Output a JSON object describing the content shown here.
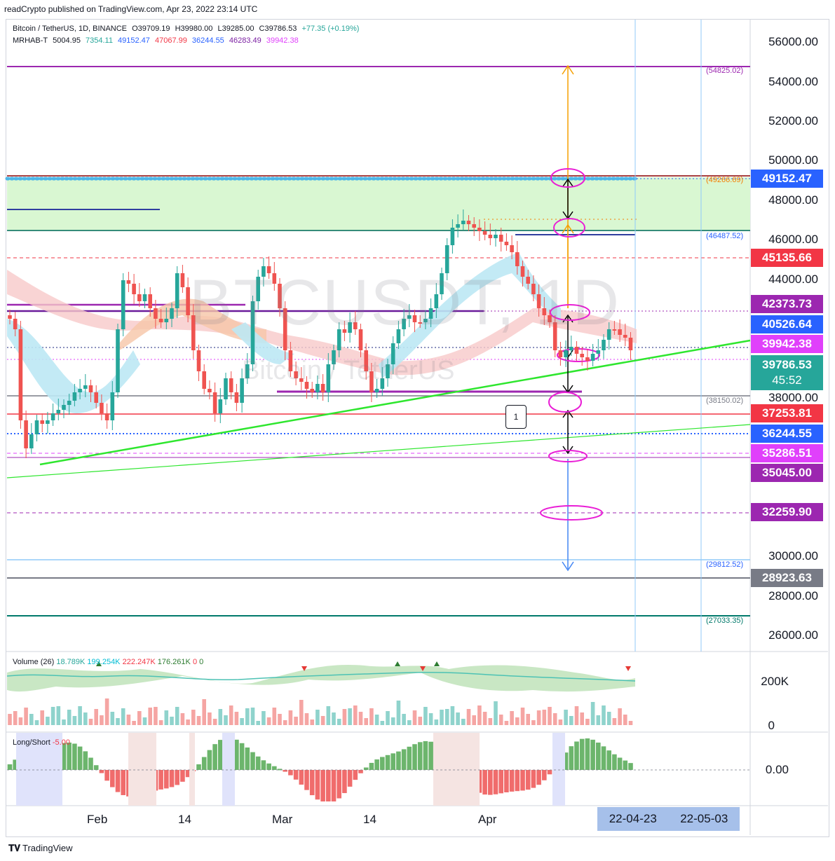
{
  "header": {
    "text": "readCrypto published on TradingView.com, Apr 23, 2022 23:14 UTC"
  },
  "legend": {
    "symbol": "Bitcoin / TetherUS, 1D, BINANCE",
    "open": "O39709.19",
    "high": "H39980.00",
    "low": "L39285.00",
    "close": "C39786.53",
    "change": "+77.35 (+0.19%)",
    "indicator_name": "MRHAB-T",
    "indicator_values": [
      "5004.95",
      "7354.11",
      "49152.47",
      "47067.99",
      "36244.55",
      "46283.49",
      "39942.38"
    ],
    "indicator_colors": [
      "#131722",
      "#26a69a",
      "#2962ff",
      "#f23645",
      "#2962ff",
      "#7b1fa2",
      "#e040fb"
    ]
  },
  "watermark": {
    "ticker": "BTCUSDT, 1D",
    "name": "Bitcoin / TetherUS"
  },
  "price_axis": [
    "56000.00",
    "54000.00",
    "52000.00",
    "50000.00",
    "48000.00",
    "46000.00",
    "44000.00",
    "38000.00",
    "30000.00",
    "28000.00",
    "26000.00"
  ],
  "price_tags": [
    {
      "value": "49152.47",
      "color": "#2962ff"
    },
    {
      "value": "45135.66",
      "color": "#f23645"
    },
    {
      "value": "42373.73",
      "color": "#9c27b0"
    },
    {
      "value": "40526.64",
      "color": "#2962ff"
    },
    {
      "value": "39942.38",
      "color": "#e040fb"
    },
    {
      "value": "39786.53",
      "color": "#26a69a",
      "countdown": "45:52"
    },
    {
      "value": "37253.81",
      "color": "#f23645"
    },
    {
      "value": "36244.55",
      "color": "#2962ff"
    },
    {
      "value": "35286.51",
      "color": "#e040fb"
    },
    {
      "value": "35045.00",
      "color": "#9c27b0"
    },
    {
      "value": "32259.90",
      "color": "#9c27b0"
    },
    {
      "value": "28923.63",
      "color": "#787b86"
    }
  ],
  "line_labels": [
    {
      "value": "(54825.02)",
      "color": "#9c27b0"
    },
    {
      "value": "(49266.69)",
      "color": "#f57c00"
    },
    {
      "value": "(46487.52)",
      "color": "#2962ff"
    },
    {
      "value": "(38150.02)",
      "color": "#787b86"
    },
    {
      "value": "(29812.52)",
      "color": "#2962ff"
    },
    {
      "value": "(27033.35)",
      "color": "#00796b"
    }
  ],
  "volume_pane": {
    "name": "Volume (26)",
    "values": [
      "18.789K",
      "199.254K",
      "222.247K",
      "176.261K",
      "0",
      "0"
    ],
    "colors": [
      "#26a69a",
      "#00bcd4",
      "#f23645",
      "#2e7d32",
      "#f23645",
      "#2e7d32"
    ],
    "axis": [
      "200K",
      "0"
    ]
  },
  "longshort_pane": {
    "name": "Long/Short",
    "value": "-5.00",
    "axis": [
      "0.00"
    ]
  },
  "callout": {
    "label": "1"
  },
  "x_axis": [
    "Feb",
    "14",
    "Mar",
    "14",
    "Apr"
  ],
  "x_axis_highlight": [
    "22-04-23",
    "22-05-03"
  ],
  "footer": {
    "brand": "TradingView"
  }
}
